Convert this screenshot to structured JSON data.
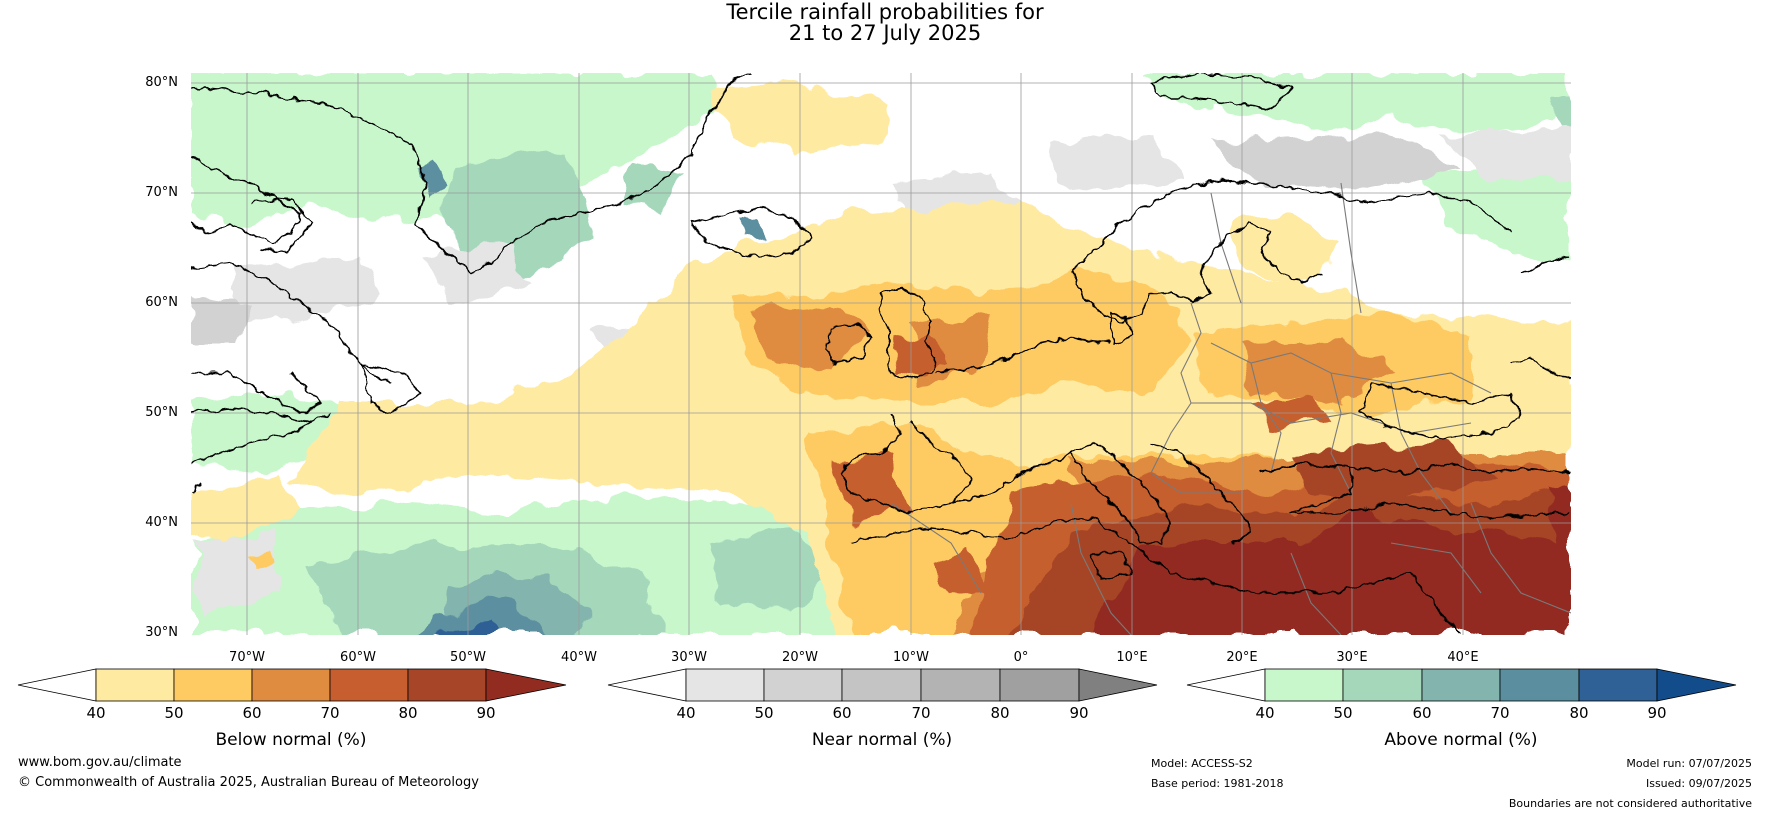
{
  "title": {
    "line1": "Tercile rainfall probabilities for",
    "line2": "21 to 27 July 2025"
  },
  "lat_labels": [
    "80°N",
    "70°N",
    "60°N",
    "50°N",
    "40°N",
    "30°N"
  ],
  "lon_labels": [
    "70°W",
    "60°W",
    "50°W",
    "40°W",
    "30°W",
    "20°W",
    "10°W",
    "0°",
    "10°E",
    "20°E",
    "30°E",
    "40°E"
  ],
  "colorbars": [
    {
      "label": "Below normal (%)",
      "ticks": [
        "40",
        "50",
        "60",
        "70",
        "80",
        "90"
      ],
      "colors": [
        "#ffffff",
        "#ffeaa2",
        "#fecb63",
        "#df8c40",
        "#c65e2f",
        "#a64528",
        "#922c20"
      ]
    },
    {
      "label": "Near normal (%)",
      "ticks": [
        "40",
        "50",
        "60",
        "70",
        "80",
        "90"
      ],
      "colors": [
        "#ffffff",
        "#e5e5e5",
        "#d2d2d2",
        "#c4c4c4",
        "#b3b3b3",
        "#a0a0a0",
        "#808080"
      ]
    },
    {
      "label": "Above normal (%)",
      "ticks": [
        "40",
        "50",
        "60",
        "70",
        "80",
        "90"
      ],
      "colors": [
        "#ffffff",
        "#c7f7cb",
        "#a5d8bb",
        "#83b5ae",
        "#5b8fa0",
        "#2f6196",
        "#124c8a"
      ]
    }
  ],
  "footer": {
    "site": "www.bom.gov.au/climate",
    "copyright": "© Commonwealth of Australia 2025, Australian Bureau of Meteorology",
    "model": "Model: ACCESS-S2",
    "base_period": "Base period: 1981-2018",
    "model_run": "Model run: 07/07/2025",
    "issued": "Issued: 09/07/2025",
    "disclaimer": "Boundaries are not considered authoritative"
  },
  "map_colors": {
    "below": [
      "#ffeaa2",
      "#fecb63",
      "#df8c40",
      "#c65e2f",
      "#a64528",
      "#922c20"
    ],
    "near": [
      "#e5e5e5",
      "#d2d2d2"
    ],
    "above": [
      "#c7f7cb",
      "#a5d8bb",
      "#83b5ae",
      "#5b8fa0",
      "#2f6196"
    ],
    "coast": "#000000",
    "border": "#7a7a7a",
    "grid": "#9a9a9a"
  }
}
